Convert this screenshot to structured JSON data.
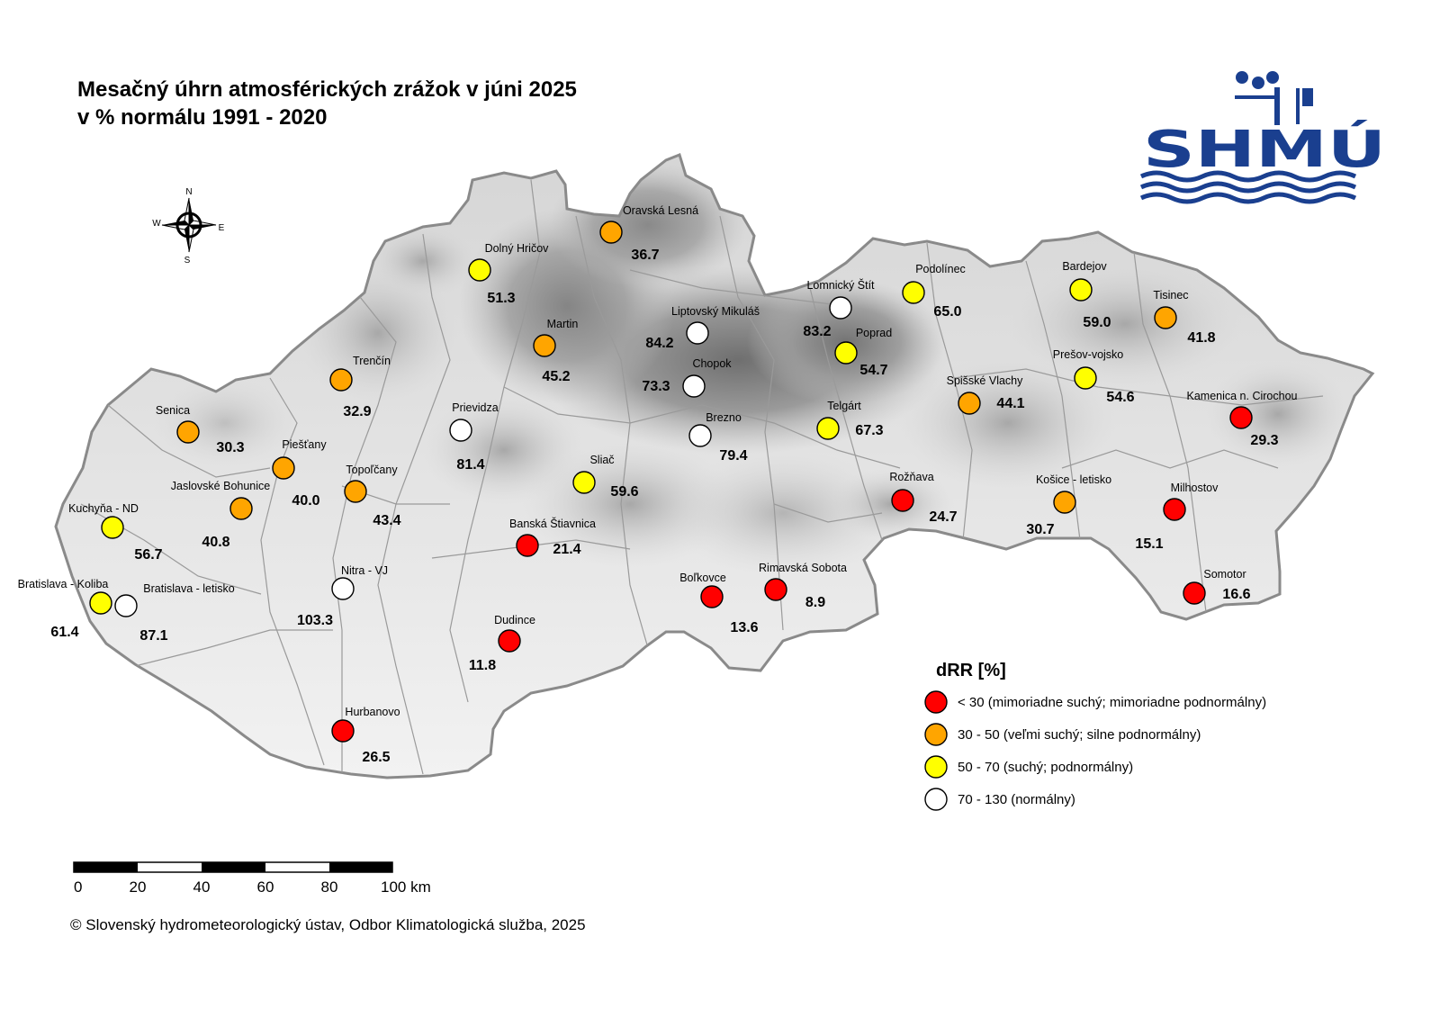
{
  "title": {
    "line1": "Mesačný úhrn atmosférických zrážok v júni 2025",
    "line2": "v % normálu 1991 - 2020"
  },
  "logo": {
    "text": "SHMÚ",
    "color": "#1a3f8f"
  },
  "compass": {
    "n": "N",
    "s": "S",
    "e": "E",
    "w": "W"
  },
  "legend": {
    "title": "dRR [%]",
    "items": [
      {
        "label": "< 30 (mimoriadne suchý; mimoriadne podnormálny)",
        "color": "#ff0000"
      },
      {
        "label": "30 - 50 (veľmi suchý; silne podnormálny)",
        "color": "#ffa500"
      },
      {
        "label": "50 - 70 (suchý; podnormálny)",
        "color": "#ffff00"
      },
      {
        "label": "70 - 130 (normálny)",
        "color": "#ffffff"
      }
    ]
  },
  "scale": {
    "ticks": [
      "0",
      "20",
      "40",
      "60",
      "80",
      "100 km"
    ]
  },
  "credit": "© Slovenský hydrometeorologický ústav, Odbor Klimatologická služba, 2025",
  "stations": [
    {
      "name": "Oravská Lesná",
      "value": "36.7",
      "cls": 1
    },
    {
      "name": "Dolný Hričov",
      "value": "51.3",
      "cls": 2
    },
    {
      "name": "Lomnický Štít",
      "value": "83.2",
      "cls": 3
    },
    {
      "name": "Podolínec",
      "value": "65.0",
      "cls": 2
    },
    {
      "name": "Bardejov",
      "value": "59.0",
      "cls": 2
    },
    {
      "name": "Tisinec",
      "value": "41.8",
      "cls": 1
    },
    {
      "name": "Liptovský Mikuláš",
      "value": "84.2",
      "cls": 3
    },
    {
      "name": "Martin",
      "value": "45.2",
      "cls": 1
    },
    {
      "name": "Poprad",
      "value": "54.7",
      "cls": 2
    },
    {
      "name": "Prešov-vojsko",
      "value": "54.6",
      "cls": 2
    },
    {
      "name": "Trenčín",
      "value": "32.9",
      "cls": 1
    },
    {
      "name": "Chopok",
      "value": "73.3",
      "cls": 3
    },
    {
      "name": "Spišské Vlachy",
      "value": "44.1",
      "cls": 1
    },
    {
      "name": "Kamenica n. Cirochou",
      "value": "29.3",
      "cls": 0
    },
    {
      "name": "Senica",
      "value": "30.3",
      "cls": 1
    },
    {
      "name": "Prievidza",
      "value": "81.4",
      "cls": 3
    },
    {
      "name": "Telgárt",
      "value": "67.3",
      "cls": 2
    },
    {
      "name": "Brezno",
      "value": "79.4",
      "cls": 3
    },
    {
      "name": "Piešťany",
      "value": "40.0",
      "cls": 1
    },
    {
      "name": "Sliač",
      "value": "59.6",
      "cls": 2
    },
    {
      "name": "Topoľčany",
      "value": "43.4",
      "cls": 1
    },
    {
      "name": "Jaslovské Bohunice",
      "value": "40.8",
      "cls": 1
    },
    {
      "name": "Rožňava",
      "value": "24.7",
      "cls": 0
    },
    {
      "name": "Košice - letisko",
      "value": "30.7",
      "cls": 1
    },
    {
      "name": "Milhostov",
      "value": "15.1",
      "cls": 0
    },
    {
      "name": "Kuchyňa - ND",
      "value": "56.7",
      "cls": 2
    },
    {
      "name": "Banská Štiavnica",
      "value": "21.4",
      "cls": 0
    },
    {
      "name": "Nitra - VJ",
      "value": "103.3",
      "cls": 3
    },
    {
      "name": "Bratislava - Koliba",
      "value": "61.4",
      "cls": 2
    },
    {
      "name": "Bratislava - letisko",
      "value": "87.1",
      "cls": 3
    },
    {
      "name": "Boľkovce",
      "value": "13.6",
      "cls": 0
    },
    {
      "name": "Rimavská Sobota",
      "value": "8.9",
      "cls": 0
    },
    {
      "name": "Somotor",
      "value": "16.6",
      "cls": 0
    },
    {
      "name": "Dudince",
      "value": "11.8",
      "cls": 0
    },
    {
      "name": "Hurbanovo",
      "value": "26.5",
      "cls": 0
    }
  ]
}
